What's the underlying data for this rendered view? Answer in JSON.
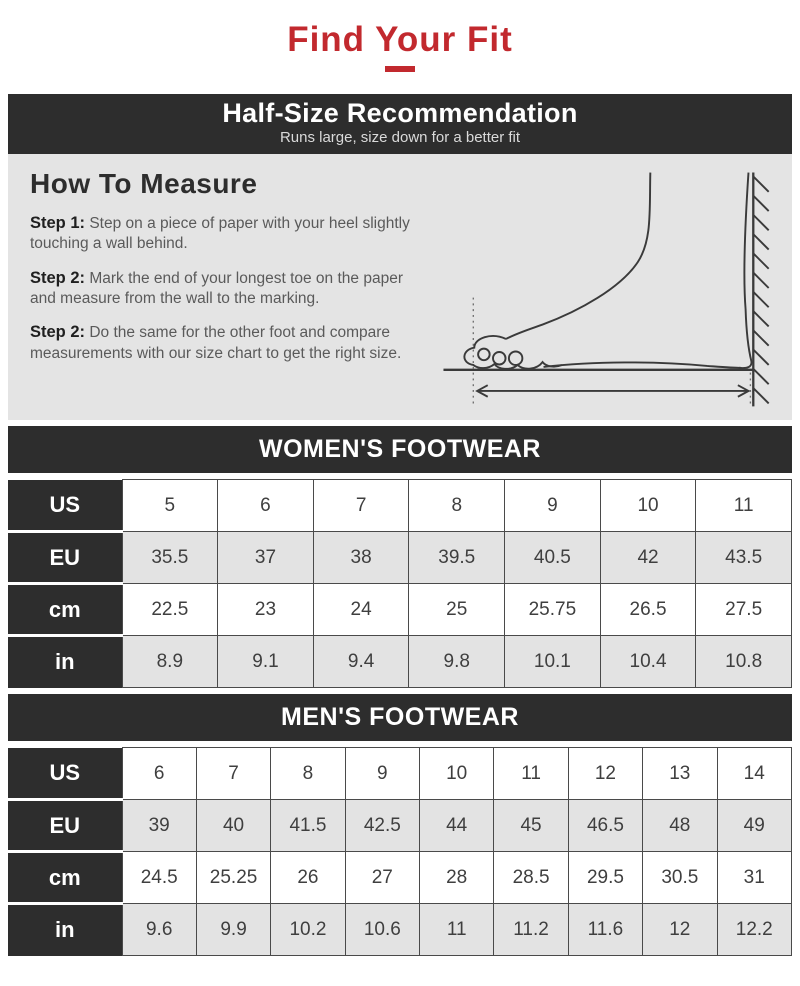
{
  "header": {
    "title": "Find Your Fit"
  },
  "colors": {
    "accent_red": "#C2292E",
    "banner_dark": "#2D2D2D",
    "section_gray": "#E4E4E4",
    "alt_row_gray": "#E3E3E3"
  },
  "banner": {
    "title": "Half-Size Recommendation",
    "subtitle": "Runs large, size down for a better fit"
  },
  "how_to_measure": {
    "heading": "How To Measure",
    "steps": [
      {
        "label": "Step 1:",
        "text": "Step on a piece of paper with your heel slightly touching a wall behind."
      },
      {
        "label": "Step 2:",
        "text": "Mark the end of your longest toe on the paper and measure from the wall to the marking."
      },
      {
        "label": "Step 2:",
        "text": "Do the same for the other foot and compare measurements with our size chart to get the right size."
      }
    ],
    "illustration": "foot-measurement-diagram"
  },
  "womens_table": {
    "title": "WOMEN'S FOOTWEAR",
    "rows": [
      {
        "label": "US",
        "values": [
          "5",
          "6",
          "7",
          "8",
          "9",
          "10",
          "11"
        ]
      },
      {
        "label": "EU",
        "values": [
          "35.5",
          "37",
          "38",
          "39.5",
          "40.5",
          "42",
          "43.5"
        ]
      },
      {
        "label": "cm",
        "values": [
          "22.5",
          "23",
          "24",
          "25",
          "25.75",
          "26.5",
          "27.5"
        ]
      },
      {
        "label": "in",
        "values": [
          "8.9",
          "9.1",
          "9.4",
          "9.8",
          "10.1",
          "10.4",
          "10.8"
        ]
      }
    ]
  },
  "mens_table": {
    "title": "MEN'S FOOTWEAR",
    "rows": [
      {
        "label": "US",
        "values": [
          "6",
          "7",
          "8",
          "9",
          "10",
          "11",
          "12",
          "13",
          "14"
        ]
      },
      {
        "label": "EU",
        "values": [
          "39",
          "40",
          "41.5",
          "42.5",
          "44",
          "45",
          "46.5",
          "48",
          "49"
        ]
      },
      {
        "label": "cm",
        "values": [
          "24.5",
          "25.25",
          "26",
          "27",
          "28",
          "28.5",
          "29.5",
          "30.5",
          "31"
        ]
      },
      {
        "label": "in",
        "values": [
          "9.6",
          "9.9",
          "10.2",
          "10.6",
          "11",
          "11.2",
          "11.6",
          "12",
          "12.2"
        ]
      }
    ]
  }
}
